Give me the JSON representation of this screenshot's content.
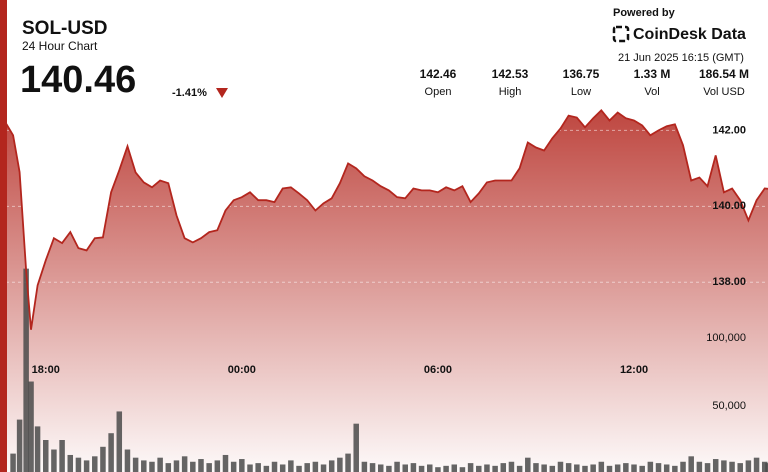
{
  "header": {
    "symbol": "SOL-USD",
    "subtitle": "24 Hour Chart",
    "price": "140.46",
    "change": "-1.41%",
    "stats": [
      {
        "value": "142.46",
        "label": "Open"
      },
      {
        "value": "142.53",
        "label": "High"
      },
      {
        "value": "136.75",
        "label": "Low"
      },
      {
        "value": "1.33 M",
        "label": "Vol"
      },
      {
        "value": "186.54 M",
        "label": "Vol USD"
      }
    ],
    "powered_by": "Powered by",
    "brand": "CoinDesk Data",
    "timestamp": "21 Jun 2025 16:15 (GMT)"
  },
  "chart_data": {
    "type": "line",
    "x": [
      16.6,
      17.0,
      17.2,
      17.4,
      17.55,
      17.75,
      18.0,
      18.25,
      18.5,
      18.75,
      19.0,
      19.25,
      19.5,
      19.75,
      20.0,
      20.25,
      20.5,
      20.75,
      21.0,
      21.25,
      21.5,
      21.75,
      22.0,
      22.25,
      22.5,
      22.75,
      23.0,
      23.25,
      23.5,
      23.75,
      24.0,
      24.25,
      24.5,
      24.75,
      25.0,
      25.25,
      25.5,
      25.75,
      26.0,
      26.25,
      26.5,
      26.75,
      27.0,
      27.25,
      27.5,
      27.75,
      28.0,
      28.25,
      28.5,
      28.75,
      29.0,
      29.25,
      29.5,
      29.75,
      30.0,
      30.25,
      30.5,
      30.75,
      31.0,
      31.25,
      31.5,
      31.75,
      32.0,
      32.25,
      32.5,
      32.75,
      33.0,
      33.25,
      33.5,
      33.75,
      34.0,
      34.25,
      34.5,
      34.75,
      35.0,
      35.25,
      35.5,
      35.75,
      36.0,
      36.25,
      36.5,
      36.75,
      37.0,
      37.25,
      37.5,
      37.75,
      38.0,
      38.25,
      38.5,
      38.75,
      39.0,
      39.25,
      39.5,
      39.75,
      40.0,
      40.1
    ],
    "xlim": [
      16.6,
      40.1
    ],
    "xticks": [
      {
        "value": 18,
        "label": "18:00"
      },
      {
        "value": 24,
        "label": "00:00"
      },
      {
        "value": 30,
        "label": "06:00"
      },
      {
        "value": 36,
        "label": "12:00"
      }
    ],
    "ylim": [
      132.95,
      142.8
    ],
    "yticks": [
      {
        "value": 138,
        "label": "138.00"
      },
      {
        "value": 140,
        "label": "140.00"
      },
      {
        "value": 142,
        "label": "142.00"
      }
    ],
    "y2lim": [
      0,
      275000
    ],
    "y2ticks": [
      {
        "value": 50000,
        "label": "50,000"
      },
      {
        "value": 100000,
        "label": "100,000"
      }
    ],
    "grid": true,
    "series": [
      {
        "type": "area",
        "color": "#b3261e",
        "values": [
          142.45,
          141.87,
          140.9,
          138.32,
          136.75,
          137.92,
          138.58,
          139.16,
          139.03,
          139.32,
          138.9,
          138.84,
          139.16,
          139.18,
          140.37,
          140.95,
          141.58,
          140.89,
          140.63,
          140.5,
          140.68,
          140.61,
          139.76,
          139.16,
          139.05,
          139.16,
          139.32,
          139.37,
          139.89,
          140.16,
          140.24,
          140.37,
          140.16,
          140.16,
          140.11,
          140.47,
          140.5,
          140.34,
          140.16,
          139.89,
          140.08,
          140.21,
          140.61,
          141.13,
          141.0,
          140.79,
          140.68,
          140.53,
          140.42,
          140.24,
          140.21,
          140.47,
          140.42,
          140.42,
          140.37,
          140.5,
          140.42,
          140.53,
          140.11,
          140.34,
          140.63,
          140.68,
          140.68,
          140.68,
          141.0,
          141.68,
          141.55,
          141.47,
          141.79,
          142.05,
          142.39,
          142.34,
          142.08,
          142.32,
          142.53,
          142.26,
          142.47,
          142.32,
          142.26,
          142.13,
          141.87,
          142.0,
          142.11,
          142.16,
          141.61,
          140.68,
          140.76,
          140.53,
          141.34,
          140.37,
          140.47,
          140.16,
          139.63,
          140.16,
          140.47,
          140.46
        ]
      },
      {
        "type": "bar",
        "axis": "y2",
        "color": "#4a4a4a",
        "values": [
          2000,
          15000,
          40000,
          151000,
          68000,
          35000,
          25000,
          18000,
          25000,
          14000,
          12000,
          10000,
          13000,
          20000,
          30000,
          46000,
          18000,
          12000,
          10000,
          9000,
          12000,
          8000,
          10000,
          13000,
          9000,
          11000,
          8000,
          10000,
          14000,
          9000,
          11000,
          7000,
          8000,
          6000,
          9000,
          7000,
          10000,
          6000,
          8000,
          9000,
          7000,
          10000,
          12000,
          15000,
          37000,
          9000,
          8000,
          7000,
          6000,
          9000,
          7000,
          8000,
          6000,
          7000,
          5000,
          6000,
          7000,
          5000,
          8000,
          6000,
          7000,
          6000,
          8000,
          9000,
          6000,
          12000,
          8000,
          7000,
          6000,
          9000,
          8000,
          7000,
          6000,
          7000,
          9000,
          6000,
          7000,
          8000,
          7000,
          6000,
          9000,
          8000,
          7000,
          6000,
          9000,
          13000,
          9000,
          8000,
          11000,
          10000,
          9000,
          8000,
          10000,
          12000,
          9000,
          8000
        ]
      }
    ]
  }
}
